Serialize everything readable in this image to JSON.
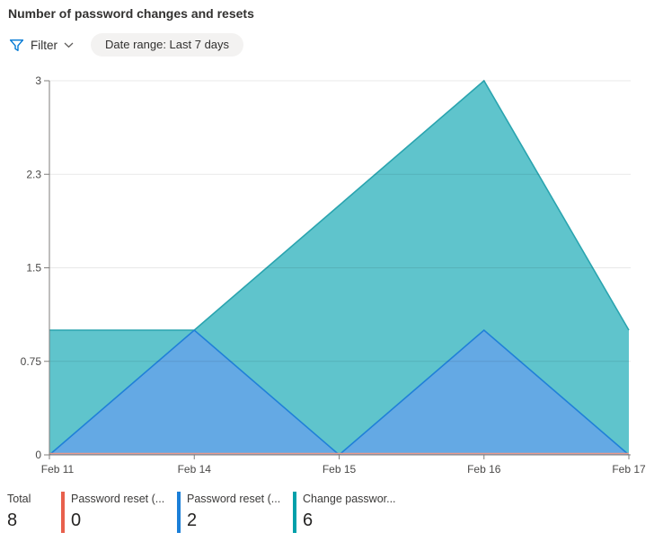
{
  "header": {
    "title": "Number of password changes and resets"
  },
  "toolbar": {
    "filter_label": "Filter",
    "date_range_label": "Date range: Last 7 days"
  },
  "chart_data": {
    "type": "area",
    "title": "Number of password changes and resets",
    "x_labels": [
      "Feb 11",
      "Feb 14",
      "Feb 15",
      "Feb 16",
      "Feb 17"
    ],
    "y_tick_labels": [
      "0",
      "0.75",
      "1.5",
      "2.3",
      "3"
    ],
    "ylim": [
      0,
      3
    ],
    "grid": "horizontal",
    "legend_position": "bottom",
    "series": [
      {
        "name": "Password reset (...",
        "values": [
          0,
          0,
          0,
          0,
          0
        ],
        "total": 0,
        "stroke": "#e99a8c",
        "line_only": true
      },
      {
        "name": "Password reset (...",
        "values": [
          0,
          1,
          0,
          1,
          0
        ],
        "total": 2,
        "fill": "#64a9e4",
        "stroke": "#2080d8"
      },
      {
        "name": "Change passwor...",
        "values": [
          1,
          1,
          2,
          3,
          1
        ],
        "total": 6,
        "fill": "#5fc4cc",
        "stroke": "#2aa4af"
      }
    ]
  },
  "legend": {
    "total_label": "Total",
    "total_value": "8",
    "items": [
      {
        "label": "Password reset (...",
        "value": "0",
        "color": "#e8604c"
      },
      {
        "label": "Password reset (...",
        "value": "2",
        "color": "#1b7fd8"
      },
      {
        "label": "Change passwor...",
        "value": "6",
        "color": "#00a0aa"
      }
    ]
  }
}
